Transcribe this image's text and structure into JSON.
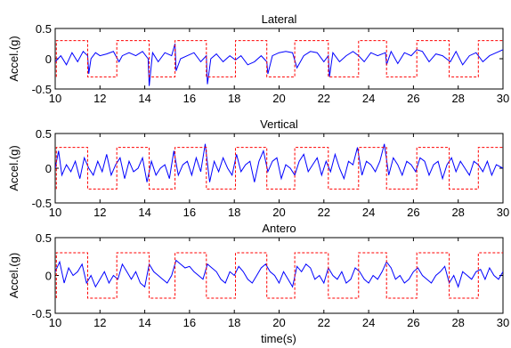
{
  "figure": {
    "xlabel": "time(s)"
  },
  "colors": {
    "signal": "#0000ff",
    "step": "#ff0000",
    "axis": "#000000"
  },
  "chart_data": [
    {
      "type": "line",
      "title": "Lateral",
      "ylabel": "Accel.(g)",
      "xlim": [
        10,
        30
      ],
      "ylim": [
        -0.5,
        0.5
      ],
      "xticks": [
        10,
        12,
        14,
        16,
        18,
        20,
        22,
        24,
        26,
        28,
        30
      ],
      "yticks": [
        0.5,
        0,
        -0.5
      ],
      "grid": false,
      "series": [
        {
          "style": "solid",
          "color": "#0000ff",
          "x": [
            10.0,
            10.25,
            10.5,
            10.75,
            11.0,
            11.25,
            11.45,
            11.5,
            11.6,
            11.8,
            12.0,
            12.3,
            12.6,
            12.85,
            13.0,
            13.3,
            13.6,
            13.9,
            14.15,
            14.2,
            14.35,
            14.6,
            14.9,
            15.2,
            15.35,
            15.4,
            15.6,
            15.9,
            16.2,
            16.5,
            16.75,
            16.8,
            16.95,
            17.2,
            17.5,
            17.8,
            18.05,
            18.3,
            18.6,
            18.9,
            19.2,
            19.45,
            19.5,
            19.7,
            20.0,
            20.3,
            20.6,
            20.8,
            21.1,
            21.4,
            21.7,
            22.0,
            22.2,
            22.25,
            22.4,
            22.7,
            23.0,
            23.3,
            23.55,
            23.8,
            24.1,
            24.4,
            24.75,
            24.8,
            25.0,
            25.3,
            25.6,
            25.9,
            26.15,
            26.4,
            26.7,
            27.0,
            27.3,
            27.65,
            27.9,
            28.2,
            28.5,
            28.8,
            29.1,
            29.4,
            29.7,
            30.0
          ],
          "y": [
            -0.05,
            0.05,
            -0.1,
            0.1,
            -0.05,
            0.12,
            0.05,
            -0.25,
            0.0,
            0.1,
            0.05,
            0.08,
            0.12,
            -0.05,
            0.05,
            0.1,
            0.05,
            0.12,
            0.0,
            -0.45,
            0.1,
            -0.05,
            0.1,
            0.05,
            0.25,
            -0.2,
            0.0,
            0.05,
            0.1,
            -0.05,
            0.05,
            -0.42,
            0.0,
            0.08,
            -0.05,
            0.05,
            -0.02,
            0.05,
            -0.1,
            -0.05,
            0.05,
            -0.05,
            -0.25,
            0.05,
            0.1,
            0.12,
            0.1,
            -0.15,
            0.05,
            0.12,
            0.1,
            -0.05,
            0.05,
            -0.3,
            0.1,
            -0.05,
            0.05,
            0.12,
            0.05,
            -0.05,
            0.1,
            0.05,
            0.1,
            -0.1,
            0.12,
            -0.08,
            0.1,
            0.05,
            0.15,
            0.12,
            -0.05,
            0.08,
            0.05,
            -0.05,
            0.12,
            -0.1,
            0.05,
            0.1,
            -0.05,
            0.05,
            0.1,
            0.15
          ]
        },
        {
          "style": "dashed",
          "color": "#ff0000",
          "x": [
            10.05,
            10.05,
            11.45,
            11.45,
            12.75,
            12.75,
            14.2,
            14.2,
            15.35,
            15.35,
            16.75,
            16.75,
            18.05,
            18.05,
            19.45,
            19.45,
            20.7,
            20.7,
            22.2,
            22.2,
            23.55,
            23.55,
            24.8,
            24.8,
            26.15,
            26.15,
            27.6,
            27.6,
            28.9,
            28.9,
            30.0
          ],
          "y": [
            -0.3,
            0.3,
            0.3,
            -0.3,
            -0.3,
            0.3,
            0.3,
            -0.3,
            -0.3,
            0.3,
            0.3,
            -0.3,
            -0.3,
            0.3,
            0.3,
            -0.3,
            -0.3,
            0.3,
            0.3,
            -0.3,
            -0.3,
            0.3,
            0.3,
            -0.3,
            -0.3,
            0.3,
            0.3,
            -0.3,
            -0.3,
            0.3,
            0.3
          ]
        }
      ]
    },
    {
      "type": "line",
      "title": "Vertical",
      "ylabel": "Accel.(g)",
      "xlim": [
        10,
        30
      ],
      "ylim": [
        -0.5,
        0.5
      ],
      "xticks": [
        10,
        12,
        14,
        16,
        18,
        20,
        22,
        24,
        26,
        28,
        30
      ],
      "yticks": [
        0.5,
        0,
        -0.5
      ],
      "grid": false,
      "series": [
        {
          "style": "solid",
          "color": "#0000ff",
          "x": [
            10.0,
            10.15,
            10.3,
            10.5,
            10.7,
            10.9,
            11.1,
            11.3,
            11.5,
            11.7,
            11.9,
            12.1,
            12.3,
            12.5,
            12.7,
            12.9,
            13.1,
            13.3,
            13.5,
            13.7,
            13.9,
            14.1,
            14.3,
            14.5,
            14.7,
            14.9,
            15.1,
            15.3,
            15.5,
            15.7,
            15.9,
            16.1,
            16.3,
            16.5,
            16.7,
            16.9,
            17.1,
            17.3,
            17.5,
            17.7,
            17.9,
            18.1,
            18.3,
            18.5,
            18.7,
            18.9,
            19.1,
            19.3,
            19.5,
            19.7,
            19.9,
            20.1,
            20.3,
            20.5,
            20.7,
            20.9,
            21.1,
            21.3,
            21.5,
            21.7,
            21.9,
            22.1,
            22.3,
            22.5,
            22.7,
            22.9,
            23.1,
            23.3,
            23.5,
            23.7,
            23.9,
            24.1,
            24.3,
            24.5,
            24.7,
            24.9,
            25.1,
            25.3,
            25.5,
            25.7,
            25.9,
            26.1,
            26.3,
            26.5,
            26.7,
            26.9,
            27.1,
            27.3,
            27.5,
            27.7,
            27.9,
            28.1,
            28.3,
            28.5,
            28.7,
            28.9,
            29.1,
            29.3,
            29.5,
            29.7,
            30.0
          ],
          "y": [
            0.0,
            0.25,
            -0.1,
            0.05,
            -0.05,
            0.1,
            -0.15,
            0.15,
            0.0,
            -0.1,
            0.1,
            -0.05,
            0.2,
            -0.1,
            0.05,
            0.15,
            -0.15,
            0.1,
            -0.05,
            0.0,
            0.15,
            -0.2,
            0.1,
            -0.1,
            0.0,
            0.05,
            -0.15,
            0.25,
            -0.1,
            0.05,
            0.1,
            -0.1,
            0.15,
            -0.05,
            0.35,
            -0.2,
            0.1,
            -0.05,
            0.15,
            0.0,
            -0.1,
            0.2,
            -0.05,
            0.05,
            0.1,
            -0.2,
            0.1,
            0.25,
            -0.05,
            0.1,
            0.15,
            -0.15,
            0.05,
            0.0,
            -0.1,
            0.1,
            0.2,
            -0.05,
            0.05,
            0.15,
            -0.1,
            0.1,
            -0.05,
            0.2,
            0.0,
            -0.15,
            0.1,
            0.05,
            0.3,
            -0.1,
            0.1,
            0.05,
            -0.05,
            0.1,
            0.35,
            -0.1,
            0.15,
            0.05,
            -0.1,
            0.1,
            0.05,
            -0.05,
            0.15,
            0.1,
            -0.1,
            0.05,
            0.1,
            -0.15,
            0.05,
            0.15,
            -0.05,
            0.1,
            0.0,
            -0.1,
            0.1,
            0.05,
            -0.05,
            0.1,
            -0.1,
            0.05,
            0.0
          ]
        },
        {
          "style": "dashed",
          "color": "#ff0000",
          "x": [
            10.05,
            10.05,
            11.45,
            11.45,
            12.75,
            12.75,
            14.2,
            14.2,
            15.35,
            15.35,
            16.75,
            16.75,
            18.05,
            18.05,
            19.45,
            19.45,
            20.7,
            20.7,
            22.2,
            22.2,
            23.55,
            23.55,
            24.8,
            24.8,
            26.15,
            26.15,
            27.6,
            27.6,
            28.9,
            28.9,
            30.0
          ],
          "y": [
            -0.3,
            0.3,
            0.3,
            -0.3,
            -0.3,
            0.3,
            0.3,
            -0.3,
            -0.3,
            0.3,
            0.3,
            -0.3,
            -0.3,
            0.3,
            0.3,
            -0.3,
            -0.3,
            0.3,
            0.3,
            -0.3,
            -0.3,
            0.3,
            0.3,
            -0.3,
            -0.3,
            0.3,
            0.3,
            -0.3,
            -0.3,
            0.3,
            0.3
          ]
        }
      ]
    },
    {
      "type": "line",
      "title": "Antero",
      "ylabel": "Accel.(g)",
      "xlim": [
        10,
        30
      ],
      "ylim": [
        -0.5,
        0.5
      ],
      "xticks": [
        10,
        12,
        14,
        16,
        18,
        20,
        22,
        24,
        26,
        28,
        30
      ],
      "yticks": [
        0.5,
        0,
        -0.5
      ],
      "grid": false,
      "series": [
        {
          "style": "solid",
          "color": "#0000ff",
          "x": [
            10.0,
            10.2,
            10.4,
            10.6,
            10.8,
            11.0,
            11.2,
            11.4,
            11.6,
            11.8,
            12.0,
            12.2,
            12.4,
            12.6,
            12.8,
            13.0,
            13.2,
            13.4,
            13.6,
            13.8,
            14.0,
            14.2,
            14.4,
            14.6,
            14.8,
            15.0,
            15.2,
            15.4,
            15.6,
            15.8,
            16.0,
            16.2,
            16.4,
            16.6,
            16.8,
            17.0,
            17.2,
            17.4,
            17.6,
            17.8,
            18.0,
            18.2,
            18.4,
            18.6,
            18.8,
            19.0,
            19.2,
            19.4,
            19.6,
            19.8,
            20.0,
            20.2,
            20.4,
            20.6,
            20.8,
            21.0,
            21.2,
            21.4,
            21.6,
            21.8,
            22.0,
            22.2,
            22.4,
            22.6,
            22.8,
            23.0,
            23.2,
            23.4,
            23.6,
            23.8,
            24.0,
            24.2,
            24.4,
            24.6,
            24.8,
            25.0,
            25.2,
            25.4,
            25.6,
            25.8,
            26.0,
            26.2,
            26.4,
            26.6,
            26.8,
            27.0,
            27.2,
            27.4,
            27.6,
            27.8,
            28.0,
            28.2,
            28.4,
            28.6,
            28.8,
            29.0,
            29.2,
            29.4,
            29.6,
            29.8,
            30.0
          ],
          "y": [
            0.05,
            0.18,
            -0.1,
            0.1,
            0.0,
            0.05,
            0.15,
            -0.1,
            0.0,
            -0.15,
            -0.05,
            0.05,
            -0.1,
            0.0,
            -0.05,
            0.15,
            0.05,
            -0.05,
            0.05,
            -0.1,
            -0.15,
            0.15,
            0.05,
            0.0,
            -0.05,
            -0.1,
            0.0,
            0.2,
            0.15,
            0.1,
            0.12,
            0.05,
            0.0,
            -0.05,
            0.15,
            0.1,
            0.05,
            -0.05,
            -0.1,
            0.05,
            0.0,
            0.12,
            0.05,
            -0.05,
            -0.1,
            0.0,
            0.1,
            0.15,
            0.05,
            0.0,
            -0.1,
            0.05,
            -0.05,
            -0.15,
            0.12,
            0.05,
            0.15,
            0.1,
            -0.05,
            0.0,
            -0.1,
            0.1,
            0.0,
            -0.05,
            0.05,
            -0.1,
            -0.05,
            0.1,
            0.05,
            -0.05,
            -0.1,
            0.0,
            -0.05,
            0.05,
            0.18,
            0.1,
            -0.05,
            0.0,
            -0.1,
            -0.05,
            0.05,
            0.1,
            0.0,
            -0.05,
            -0.1,
            0.0,
            0.05,
            0.12,
            -0.1,
            0.0,
            -0.15,
            0.05,
            0.0,
            -0.05,
            0.05,
            0.08,
            -0.05,
            0.1,
            0.0,
            -0.05,
            0.05
          ]
        },
        {
          "style": "dashed",
          "color": "#ff0000",
          "x": [
            10.05,
            10.05,
            11.45,
            11.45,
            12.75,
            12.75,
            14.2,
            14.2,
            15.35,
            15.35,
            16.75,
            16.75,
            18.05,
            18.05,
            19.45,
            19.45,
            20.7,
            20.7,
            22.2,
            22.2,
            23.55,
            23.55,
            24.8,
            24.8,
            26.15,
            26.15,
            27.6,
            27.6,
            28.9,
            28.9,
            30.0
          ],
          "y": [
            -0.3,
            0.3,
            0.3,
            -0.3,
            -0.3,
            0.3,
            0.3,
            -0.3,
            -0.3,
            0.3,
            0.3,
            -0.3,
            -0.3,
            0.3,
            0.3,
            -0.3,
            -0.3,
            0.3,
            0.3,
            -0.3,
            -0.3,
            0.3,
            0.3,
            -0.3,
            -0.3,
            0.3,
            0.3,
            -0.3,
            -0.3,
            0.3,
            0.3
          ]
        }
      ]
    }
  ]
}
